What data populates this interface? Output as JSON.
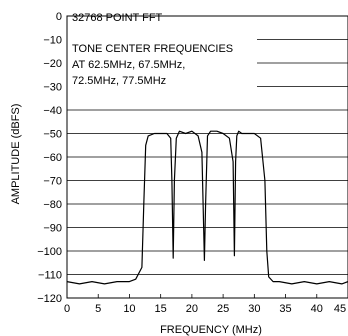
{
  "chart_data": {
    "type": "line",
    "xlabel": "FREQUENCY (MHz)",
    "ylabel": "AMPLITUDE (dBFS)",
    "xlim": [
      0,
      45
    ],
    "ylim": [
      -120,
      0
    ],
    "xticks": [
      "0",
      "5",
      "10",
      "15",
      "20",
      "25",
      "30",
      "35",
      "40",
      "45"
    ],
    "yticks": [
      "0",
      "−10",
      "−20",
      "−30",
      "−40",
      "−50",
      "−60",
      "−70",
      "−80",
      "−90",
      "−100",
      "−110",
      "−120"
    ],
    "grid": "horizontal",
    "annotation_lines": [
      "32768 POINT FFT",
      "TONE CENTER FREQUENCIES",
      "AT 62.5MHz, 67.5MHz,",
      "72.5MHz, 77.5MHz"
    ],
    "series": [
      {
        "x": [
          0,
          2,
          4,
          6,
          8,
          10,
          11,
          12,
          12.3,
          12.6,
          13,
          14,
          15,
          16,
          16.6,
          16.8,
          17.0,
          17.2,
          17.5,
          18,
          19,
          20,
          21,
          21.6,
          21.8,
          22.0,
          22.2,
          22.5,
          23,
          24,
          25,
          26,
          26.6,
          26.8,
          27.0,
          27.2,
          27.5,
          28,
          29,
          30,
          31,
          31.7,
          32,
          32.3,
          33,
          34,
          36,
          38,
          40,
          42,
          44,
          45
        ],
        "y": [
          -113,
          -114,
          -113,
          -114,
          -113,
          -113,
          -112,
          -107,
          -80,
          -55,
          -51,
          -50,
          -50,
          -50,
          -52,
          -70,
          -103,
          -70,
          -52,
          -49,
          -50,
          -49,
          -51,
          -58,
          -80,
          -104,
          -80,
          -51,
          -49,
          -49,
          -50,
          -52,
          -62,
          -102,
          -62,
          -51,
          -49,
          -50,
          -50,
          -50,
          -52,
          -70,
          -100,
          -111,
          -113,
          -113,
          -114,
          -113,
          -114,
          -113,
          -114,
          -113
        ]
      }
    ]
  }
}
